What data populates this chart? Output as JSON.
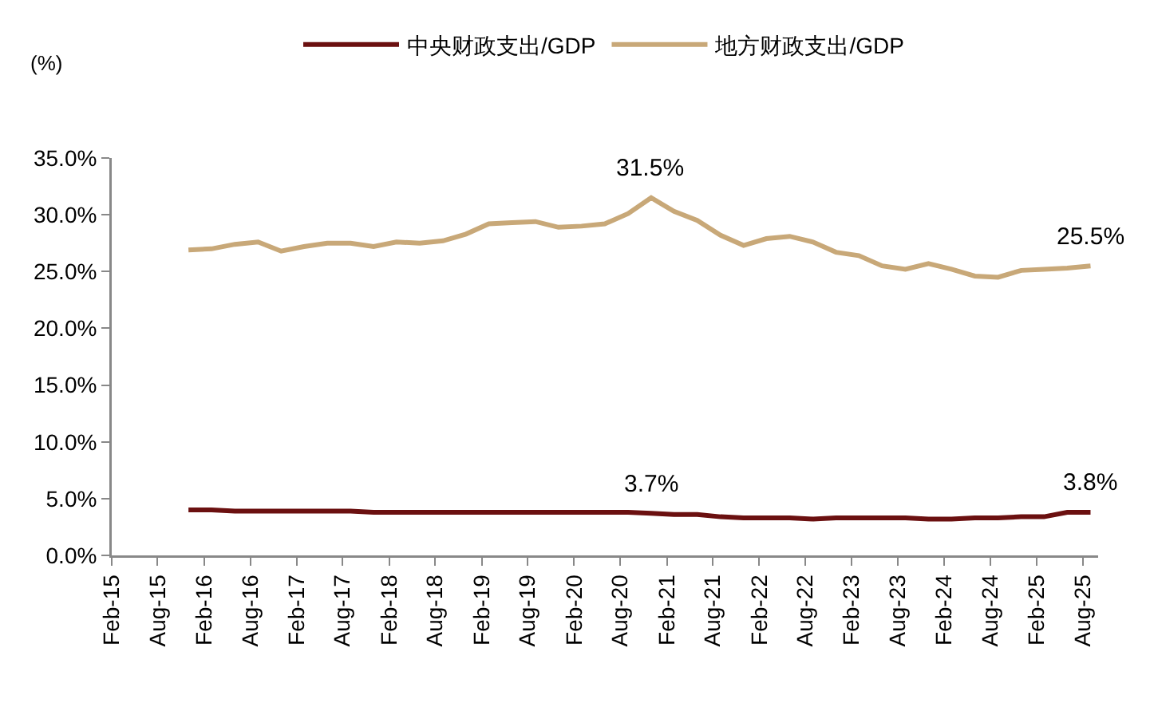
{
  "chart_data": {
    "type": "line",
    "ylabel": "(%)",
    "x": [
      "2015-12",
      "2016-03",
      "2016-06",
      "2016-09",
      "2016-12",
      "2017-03",
      "2017-06",
      "2017-09",
      "2017-12",
      "2018-03",
      "2018-06",
      "2018-09",
      "2018-12",
      "2019-03",
      "2019-06",
      "2019-09",
      "2019-12",
      "2020-03",
      "2020-06",
      "2020-09",
      "2020-12",
      "2021-03",
      "2021-06",
      "2021-09",
      "2021-12",
      "2022-03",
      "2022-06",
      "2022-09",
      "2022-12",
      "2023-03",
      "2023-06",
      "2023-09",
      "2023-12",
      "2024-03",
      "2024-06",
      "2024-09",
      "2024-12",
      "2025-03",
      "2025-06",
      "2025-09"
    ],
    "series": [
      {
        "name": "中央财政支出/GDP",
        "color": "#6b1010",
        "values": [
          4.0,
          4.0,
          3.9,
          3.9,
          3.9,
          3.9,
          3.9,
          3.9,
          3.8,
          3.8,
          3.8,
          3.8,
          3.8,
          3.8,
          3.8,
          3.8,
          3.8,
          3.8,
          3.8,
          3.8,
          3.7,
          3.6,
          3.6,
          3.4,
          3.3,
          3.3,
          3.3,
          3.2,
          3.3,
          3.3,
          3.3,
          3.3,
          3.2,
          3.2,
          3.3,
          3.3,
          3.4,
          3.4,
          3.8,
          3.8
        ]
      },
      {
        "name": "地方财政支出/GDP",
        "color": "#c8a878",
        "values": [
          26.9,
          27.0,
          27.4,
          27.6,
          26.8,
          27.2,
          27.5,
          27.5,
          27.2,
          27.6,
          27.5,
          27.7,
          28.3,
          29.2,
          29.3,
          29.4,
          28.9,
          29.0,
          29.2,
          30.1,
          31.5,
          30.3,
          29.5,
          28.2,
          27.3,
          27.9,
          28.1,
          27.6,
          26.7,
          26.4,
          25.5,
          25.2,
          25.7,
          25.2,
          24.6,
          24.5,
          25.1,
          25.2,
          25.3,
          25.5
        ]
      }
    ],
    "ylim": [
      0,
      35
    ],
    "yticks": [
      {
        "value": 0,
        "label": "0.0%"
      },
      {
        "value": 5,
        "label": "5.0%"
      },
      {
        "value": 10,
        "label": "10.0%"
      },
      {
        "value": 15,
        "label": "15.0%"
      },
      {
        "value": 20,
        "label": "20.0%"
      },
      {
        "value": 25,
        "label": "25.0%"
      },
      {
        "value": 30,
        "label": "30.0%"
      },
      {
        "value": 35,
        "label": "35.0%"
      }
    ],
    "xlim": [
      "2015-02",
      "2025-10"
    ],
    "xticks": [
      {
        "value": "2015-02",
        "label": "Feb-15"
      },
      {
        "value": "2015-08",
        "label": "Aug-15"
      },
      {
        "value": "2016-02",
        "label": "Feb-16"
      },
      {
        "value": "2016-08",
        "label": "Aug-16"
      },
      {
        "value": "2017-02",
        "label": "Feb-17"
      },
      {
        "value": "2017-08",
        "label": "Aug-17"
      },
      {
        "value": "2018-02",
        "label": "Feb-18"
      },
      {
        "value": "2018-08",
        "label": "Aug-18"
      },
      {
        "value": "2019-02",
        "label": "Feb-19"
      },
      {
        "value": "2019-08",
        "label": "Aug-19"
      },
      {
        "value": "2020-02",
        "label": "Feb-20"
      },
      {
        "value": "2020-08",
        "label": "Aug-20"
      },
      {
        "value": "2021-02",
        "label": "Feb-21"
      },
      {
        "value": "2021-08",
        "label": "Aug-21"
      },
      {
        "value": "2022-02",
        "label": "Feb-22"
      },
      {
        "value": "2022-08",
        "label": "Aug-22"
      },
      {
        "value": "2023-02",
        "label": "Feb-23"
      },
      {
        "value": "2023-08",
        "label": "Aug-23"
      },
      {
        "value": "2024-02",
        "label": "Feb-24"
      },
      {
        "value": "2024-08",
        "label": "Aug-24"
      },
      {
        "value": "2025-02",
        "label": "Feb-25"
      },
      {
        "value": "2025-08",
        "label": "Aug-25"
      }
    ],
    "grid": false,
    "legend": "top",
    "marker": "none",
    "line_style": "solid",
    "annotations": [
      {
        "text": "31.5%",
        "x": "2020-12",
        "y": 31.5
      },
      {
        "text": "25.5%",
        "x": "2025-09",
        "y": 25.5
      },
      {
        "text": "3.7%",
        "x": "2020-12",
        "y": 3.7
      },
      {
        "text": "3.8%",
        "x": "2025-09",
        "y": 3.8
      }
    ]
  }
}
